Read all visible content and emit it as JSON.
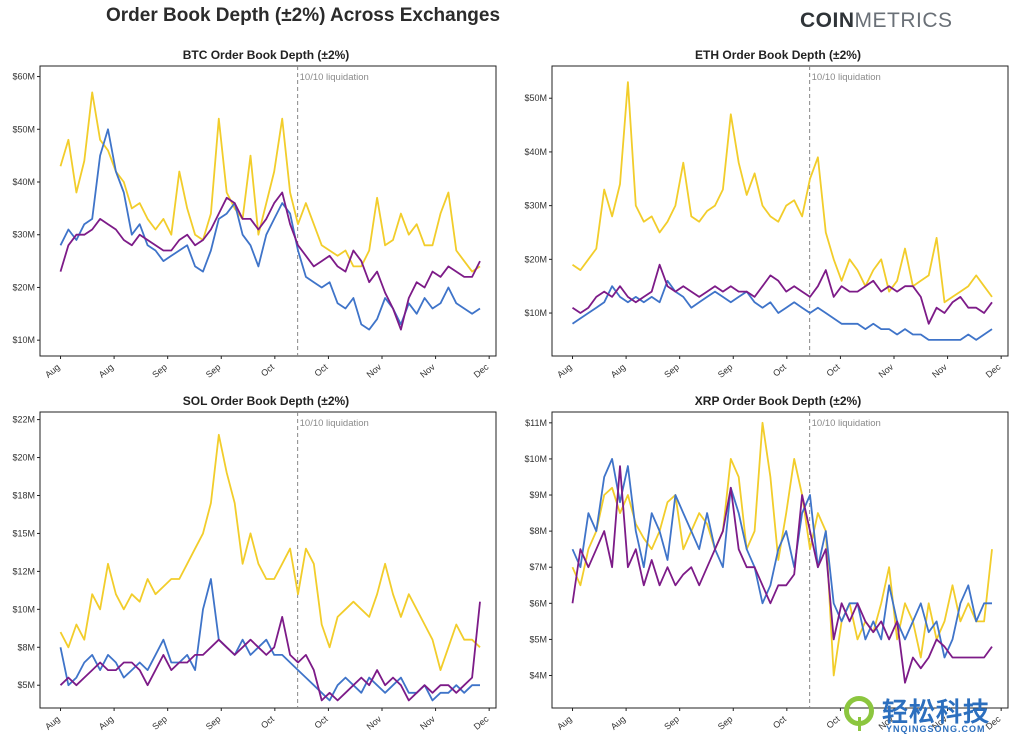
{
  "title": "Order Book Depth (±2%) Across Exchanges",
  "brand": {
    "bold": "COIN",
    "light": "METRICS"
  },
  "watermark": {
    "cn": "轻松科技",
    "en": "YNQINGSONG.COM"
  },
  "colors": {
    "yellow": "#f2cd2b",
    "blue": "#3f74c9",
    "purple": "#7d1b88",
    "grid": "#e6e6e6",
    "annotation": "#8a8a8a"
  },
  "chart_data": [
    {
      "type": "line",
      "title": "BTC Order Book Depth (±2%)",
      "x_tick_labels": [
        "Aug",
        "Aug",
        "Sep",
        "Sep",
        "Oct",
        "Oct",
        "Nov",
        "Nov",
        "Dec"
      ],
      "y_tick_labels": [
        "$10M",
        "$20M",
        "$30M",
        "$40M",
        "$50M",
        "$60M"
      ],
      "y_ticks": [
        10,
        20,
        30,
        40,
        50,
        60
      ],
      "ylim": [
        7,
        62
      ],
      "annotation": {
        "text": "10/10 liquidation",
        "x_fraction": 0.565
      },
      "series": [
        {
          "name": "yellow",
          "color": "#f2cd2b",
          "values": [
            43,
            48,
            38,
            44,
            57,
            48,
            46,
            42,
            40,
            35,
            36,
            33,
            31,
            33,
            30,
            42,
            35,
            30,
            29,
            34,
            52,
            38,
            35,
            33,
            45,
            30,
            36,
            42,
            52,
            38,
            32,
            36,
            32,
            28,
            27,
            26,
            27,
            24,
            24,
            27,
            37,
            28,
            29,
            34,
            30,
            32,
            28,
            28,
            34,
            38,
            27,
            25,
            23,
            24
          ]
        },
        {
          "name": "blue",
          "color": "#3f74c9",
          "values": [
            28,
            31,
            29,
            32,
            33,
            45,
            50,
            42,
            38,
            30,
            32,
            28,
            27,
            25,
            26,
            27,
            28,
            24,
            23,
            27,
            33,
            34,
            36,
            30,
            28,
            24,
            30,
            33,
            36,
            34,
            27,
            22,
            21,
            20,
            21,
            17,
            16,
            18,
            13,
            12,
            14,
            18,
            16,
            13,
            17,
            15,
            18,
            16,
            17,
            20,
            17,
            16,
            15,
            16
          ]
        },
        {
          "name": "purple",
          "color": "#7d1b88",
          "values": [
            23,
            28,
            30,
            30,
            31,
            33,
            32,
            31,
            29,
            28,
            30,
            29,
            28,
            27,
            27,
            29,
            30,
            28,
            29,
            31,
            34,
            37,
            36,
            33,
            33,
            31,
            33,
            36,
            38,
            32,
            28,
            26,
            24,
            25,
            26,
            24,
            23,
            27,
            25,
            21,
            23,
            19,
            16,
            12,
            18,
            21,
            20,
            23,
            22,
            24,
            23,
            22,
            22,
            25
          ]
        }
      ]
    },
    {
      "type": "line",
      "title": "ETH Order Book Depth (±2%)",
      "x_tick_labels": [
        "Aug",
        "Aug",
        "Sep",
        "Sep",
        "Oct",
        "Oct",
        "Nov",
        "Nov",
        "Dec"
      ],
      "y_tick_labels": [
        "$10M",
        "$20M",
        "$30M",
        "$40M",
        "$50M"
      ],
      "y_ticks": [
        10,
        20,
        30,
        40,
        50
      ],
      "ylim": [
        2,
        56
      ],
      "annotation": {
        "text": "10/10 liquidation",
        "x_fraction": 0.565
      },
      "series": [
        {
          "name": "yellow",
          "color": "#f2cd2b",
          "values": [
            19,
            18,
            20,
            22,
            33,
            28,
            34,
            53,
            30,
            27,
            28,
            25,
            27,
            30,
            38,
            28,
            27,
            29,
            30,
            33,
            47,
            38,
            32,
            36,
            30,
            28,
            27,
            30,
            31,
            28,
            35,
            39,
            25,
            20,
            16,
            20,
            18,
            15,
            18,
            20,
            14,
            16,
            22,
            15,
            16,
            17,
            24,
            12,
            13,
            14,
            15,
            17,
            15,
            13
          ]
        },
        {
          "name": "blue",
          "color": "#3f74c9",
          "values": [
            8,
            9,
            10,
            11,
            12,
            15,
            13,
            12,
            13,
            12,
            13,
            12,
            16,
            14,
            13,
            11,
            12,
            13,
            14,
            13,
            12,
            13,
            14,
            12,
            11,
            12,
            10,
            11,
            12,
            11,
            10,
            11,
            10,
            9,
            8,
            8,
            8,
            7,
            8,
            7,
            7,
            6,
            7,
            6,
            6,
            5,
            5,
            5,
            5,
            5,
            6,
            5,
            6,
            7
          ]
        },
        {
          "name": "purple",
          "color": "#7d1b88",
          "values": [
            11,
            10,
            11,
            13,
            14,
            13,
            15,
            13,
            12,
            13,
            14,
            19,
            15,
            14,
            15,
            14,
            13,
            14,
            15,
            14,
            15,
            14,
            14,
            13,
            15,
            17,
            16,
            14,
            15,
            14,
            13,
            15,
            18,
            13,
            15,
            14,
            14,
            15,
            16,
            14,
            15,
            14,
            15,
            15,
            13,
            8,
            11,
            10,
            12,
            13,
            11,
            11,
            10,
            12
          ]
        }
      ]
    },
    {
      "type": "line",
      "title": "SOL Order Book Depth (±2%)",
      "x_tick_labels": [
        "Aug",
        "Aug",
        "Sep",
        "Sep",
        "Oct",
        "Oct",
        "Nov",
        "Nov",
        "Dec"
      ],
      "y_tick_labels": [
        "$5M",
        "$8M",
        "$10M",
        "$12M",
        "$15M",
        "$18M",
        "$20M",
        "$22M"
      ],
      "y_ticks": [
        5,
        7.5,
        10,
        12.5,
        15,
        17.5,
        20,
        22.5
      ],
      "ylim": [
        3.5,
        23
      ],
      "annotation": {
        "text": "10/10 liquidation",
        "x_fraction": 0.565
      },
      "series": [
        {
          "name": "yellow",
          "color": "#f2cd2b",
          "values": [
            8.5,
            7.5,
            9,
            8,
            11,
            10,
            13,
            11,
            10,
            11,
            10.5,
            12,
            11,
            11.5,
            12,
            12,
            13,
            14,
            15,
            17,
            21.5,
            19,
            17,
            13,
            15,
            13,
            12,
            12,
            13,
            14,
            11,
            14,
            13,
            9,
            7.5,
            9.5,
            10,
            10.5,
            10,
            9.5,
            11,
            13,
            11,
            9.5,
            11,
            10,
            9,
            8,
            6,
            7.5,
            9,
            8,
            8,
            7.5
          ]
        },
        {
          "name": "blue",
          "color": "#3f74c9",
          "values": [
            7.5,
            5,
            5.5,
            6.5,
            7,
            6,
            7,
            6.5,
            5.5,
            6,
            6.5,
            6,
            7,
            8,
            6.5,
            6.5,
            7,
            6,
            10,
            12,
            8,
            7.5,
            7,
            8,
            7,
            7.5,
            8,
            7,
            7,
            6.5,
            6,
            5.5,
            5,
            4.5,
            4,
            5,
            5.5,
            5,
            4.5,
            5.5,
            5,
            4.5,
            5,
            5.5,
            4.5,
            4.5,
            5,
            4,
            4.5,
            4.5,
            5,
            4.5,
            5,
            5
          ]
        },
        {
          "name": "purple",
          "color": "#7d1b88",
          "values": [
            5,
            5.5,
            5,
            5.5,
            6,
            6.5,
            6,
            6,
            6.5,
            6.5,
            6,
            5,
            6,
            7,
            6,
            6.5,
            6.5,
            7,
            7,
            7.5,
            8,
            7.5,
            7,
            7.5,
            8,
            7.5,
            7,
            7.5,
            9.5,
            7,
            6.5,
            7,
            6,
            4,
            4.5,
            4,
            4.5,
            5,
            5.5,
            5,
            6,
            5,
            5.5,
            5,
            4,
            4.5,
            5,
            4.5,
            5,
            5,
            4.5,
            5,
            5.5,
            10.5
          ]
        }
      ]
    },
    {
      "type": "line",
      "title": "XRP Order Book Depth (±2%)",
      "x_tick_labels": [
        "Aug",
        "Aug",
        "Sep",
        "Sep",
        "Oct",
        "Oct",
        "Nov",
        "Nov",
        "Dec"
      ],
      "y_tick_labels": [
        "$4M",
        "$5M",
        "$6M",
        "$7M",
        "$8M",
        "$9M",
        "$10M",
        "$11M"
      ],
      "y_ticks": [
        4,
        5,
        6,
        7,
        8,
        9,
        10,
        11
      ],
      "ylim": [
        3.1,
        11.3
      ],
      "annotation": {
        "text": "10/10 liquidation",
        "x_fraction": 0.565
      },
      "series": [
        {
          "name": "yellow",
          "color": "#f2cd2b",
          "values": [
            7,
            6.5,
            7.5,
            8,
            9,
            9.2,
            8.5,
            9,
            8.2,
            7.8,
            7.5,
            8,
            8.8,
            9,
            7.5,
            8,
            8.5,
            8.2,
            7.5,
            8,
            10,
            9.5,
            7.5,
            8,
            11,
            9.5,
            7.2,
            8.5,
            10,
            9,
            7.5,
            8.5,
            8,
            4,
            5.5,
            6,
            5,
            5.5,
            5.2,
            6,
            7,
            5,
            6,
            5.5,
            4.5,
            6,
            5,
            5.5,
            6.5,
            5.5,
            6,
            5.5,
            5.5,
            7.5
          ]
        },
        {
          "name": "blue",
          "color": "#3f74c9",
          "values": [
            7.5,
            7,
            8.5,
            8,
            9.5,
            10,
            8.8,
            9.8,
            8,
            7,
            8.5,
            8,
            7.2,
            9,
            8.5,
            8,
            7.5,
            8.5,
            7.5,
            7,
            9.2,
            8.5,
            7.5,
            7,
            6,
            6.5,
            7.5,
            8,
            7,
            8.5,
            9,
            7,
            8,
            6,
            5.5,
            6,
            6,
            5,
            5.5,
            5,
            6.5,
            5.5,
            5,
            5.5,
            6,
            5.2,
            5.5,
            4.5,
            5,
            6,
            6.5,
            5.5,
            6,
            6
          ]
        },
        {
          "name": "purple",
          "color": "#7d1b88",
          "values": [
            6,
            7.5,
            7,
            7.5,
            8,
            7,
            9.8,
            7,
            7.5,
            6.5,
            7.2,
            6.5,
            7,
            6.5,
            6.8,
            7,
            6.5,
            7,
            7.5,
            8,
            9.2,
            7.5,
            7,
            7,
            6.5,
            6,
            6.5,
            6.5,
            6.8,
            9,
            8,
            7,
            7.5,
            5,
            6,
            5.5,
            6,
            5.5,
            5.2,
            5.5,
            5,
            5.5,
            3.8,
            4.5,
            4.2,
            4.5,
            5,
            4.8,
            4.5,
            4.5,
            4.5,
            4.5,
            4.5,
            4.8
          ]
        }
      ]
    }
  ]
}
